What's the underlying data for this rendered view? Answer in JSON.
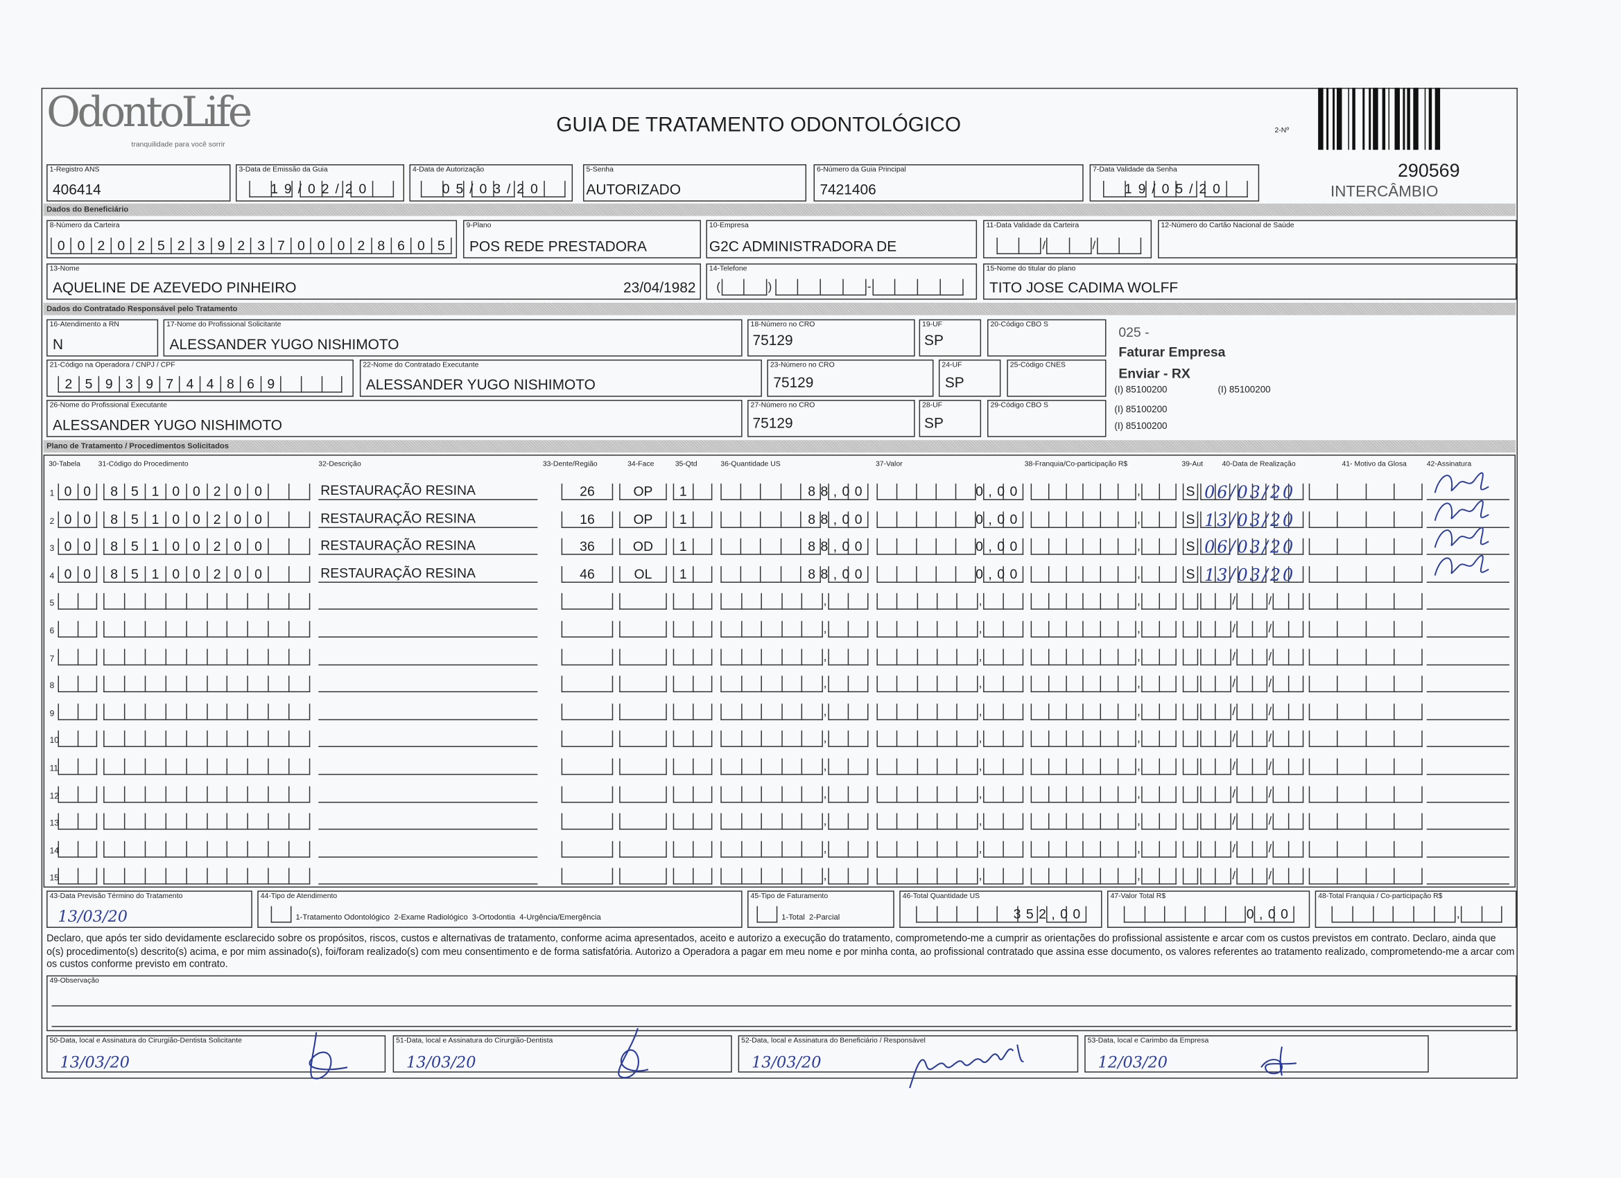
{
  "header": {
    "logo_text": "OdontoLife",
    "logo_tagline": "tranquilidade para você sorrir",
    "title": "GUIA DE TRATAMENTO ODONTOLÓGICO",
    "guide_number_label": "2-Nº",
    "guide_number": "290569",
    "type": "INTERCÂMBIO"
  },
  "fields": {
    "f1": {
      "label": "1-Registro ANS",
      "value": "406414"
    },
    "f3": {
      "label": "3-Data de Emissão da Guia",
      "value": "19/02/20"
    },
    "f4": {
      "label": "4-Data de Autorização",
      "value": "05/03/20"
    },
    "f5": {
      "label": "5-Senha",
      "value": "AUTORIZADO"
    },
    "f6": {
      "label": "6-Número da Guia Principal",
      "value": "7421406"
    },
    "f7": {
      "label": "7-Data Validade da Senha",
      "value": "19/05/20"
    },
    "f8": {
      "label": "8-Número da Carteira",
      "value": "00202523923700028605"
    },
    "f9": {
      "label": "9-Plano",
      "value": "POS REDE PRESTADORA"
    },
    "f10": {
      "label": "10-Empresa",
      "value": "G2C ADMINISTRADORA DE"
    },
    "f11": {
      "label": "11-Data Validade da Carteira",
      "value": ""
    },
    "f12": {
      "label": "12-Número do Cartão Nacional de Saúde",
      "value": ""
    },
    "f13": {
      "label": "13-Nome",
      "value": "AQUELINE DE AZEVEDO PINHEIRO",
      "birth_date": "23/04/1982"
    },
    "f14": {
      "label": "14-Telefone",
      "value": ""
    },
    "f15": {
      "label": "15-Nome do titular do plano",
      "value": "TITO JOSE CADIMA WOLFF"
    },
    "f16": {
      "label": "16-Atendimento a RN",
      "value": "N"
    },
    "f17": {
      "label": "17-Nome do Profissional Solicitante",
      "value": "ALESSANDER YUGO NISHIMOTO"
    },
    "f18": {
      "label": "18-Número no CRO",
      "value": "75129"
    },
    "f19": {
      "label": "19-UF",
      "value": "SP"
    },
    "f20": {
      "label": "20-Código CBO S",
      "value": ""
    },
    "f21": {
      "label": "21-Código na Operadora / CNPJ / CPF",
      "value": "25939744869"
    },
    "f22": {
      "label": "22-Nome do Contratado Executante",
      "value": "ALESSANDER YUGO NISHIMOTO"
    },
    "f23": {
      "label": "23-Número no CRO",
      "value": "75129"
    },
    "f24": {
      "label": "24-UF",
      "value": "SP"
    },
    "f25": {
      "label": "25-Código CNES",
      "value": ""
    },
    "f26": {
      "label": "26-Nome do Profissional Executante",
      "value": "ALESSANDER YUGO NISHIMOTO"
    },
    "f27": {
      "label": "27-Número no CRO",
      "value": "75129"
    },
    "f28": {
      "label": "28-UF",
      "value": "SP"
    },
    "f29": {
      "label": "29-Código CBO S",
      "value": ""
    }
  },
  "sections": {
    "beneficiario": "Dados do Beneficiário",
    "contratado": "Dados do Contratado Responsável pelo Tratamento",
    "plano": "Plano de Tratamento / Procedimentos Solicitados"
  },
  "side_notes": {
    "code": "025 -",
    "billing": "Faturar Empresa",
    "rx": "Enviar - RX",
    "refs": [
      "(I) 85100200",
      "(I) 85100200",
      "(I) 85100200",
      "(I) 85100200"
    ]
  },
  "table": {
    "headers": [
      "30-Tabela",
      "31-Código do Procedimento",
      "32-Descrição",
      "33-Dente/Região",
      "34-Face",
      "35-Qtd",
      "36-Quantidade US",
      "37-Valor",
      "38-Franquia/Co-participação R$",
      "39-Aut",
      "40-Data de Realização",
      "41- Motivo da Glosa",
      "42-Assinatura"
    ],
    "rows": [
      {
        "n": "1",
        "tabela": "00",
        "codigo": "85100200",
        "descricao": "RESTAURAÇÃO RESINA",
        "dente": "26",
        "face": "OP",
        "qtd": "1",
        "qtd_us": "88,00",
        "valor": "0,00",
        "franquia": "",
        "aut": "S",
        "data": "06/03/20",
        "signed": true
      },
      {
        "n": "2",
        "tabela": "00",
        "codigo": "85100200",
        "descricao": "RESTAURAÇÃO RESINA",
        "dente": "16",
        "face": "OP",
        "qtd": "1",
        "qtd_us": "88,00",
        "valor": "0,00",
        "franquia": "",
        "aut": "S",
        "data": "13/03/20",
        "signed": true
      },
      {
        "n": "3",
        "tabela": "00",
        "codigo": "85100200",
        "descricao": "RESTAURAÇÃO RESINA",
        "dente": "36",
        "face": "OD",
        "qtd": "1",
        "qtd_us": "88,00",
        "valor": "0,00",
        "franquia": "",
        "aut": "S",
        "data": "06/03/20",
        "signed": true
      },
      {
        "n": "4",
        "tabela": "00",
        "codigo": "85100200",
        "descricao": "RESTAURAÇÃO RESINA",
        "dente": "46",
        "face": "OL",
        "qtd": "1",
        "qtd_us": "88,00",
        "valor": "0,00",
        "franquia": "",
        "aut": "S",
        "data": "13/03/20",
        "signed": true
      },
      {
        "n": "5"
      },
      {
        "n": "6"
      },
      {
        "n": "7"
      },
      {
        "n": "8"
      },
      {
        "n": "9"
      },
      {
        "n": "10"
      },
      {
        "n": "11"
      },
      {
        "n": "12"
      },
      {
        "n": "13"
      },
      {
        "n": "14"
      },
      {
        "n": "15"
      }
    ]
  },
  "footer": {
    "f43": {
      "label": "43-Data Previsão Término do Tratamento",
      "value": "13/03/20"
    },
    "f44": {
      "label": "44-Tipo de Atendimento",
      "options": "1-Tratamento Odontológico  2-Exame Radiológico  3-Ortodontia  4-Urgência/Emergência"
    },
    "f45": {
      "label": "45-Tipo de Faturamento",
      "options": "1-Total  2-Parcial"
    },
    "f46": {
      "label": "46-Total Quantidade US",
      "value": "352,00"
    },
    "f47": {
      "label": "47-Valor Total R$",
      "value": "0,00"
    },
    "f48": {
      "label": "48-Total Franquia / Co-participação R$",
      "value": ""
    },
    "declaration": "Declaro, que após ter sido devidamente esclarecido sobre os propósitos, riscos, custos e alternativas de tratamento, conforme acima apresentados, aceito e autorizo a execução do tratamento, comprometendo-me a cumprir as orientações do profissional assistente e arcar com os custos previstos em contrato. Declaro, ainda que o(s) procedimento(s) descrito(s) acima, e por mim assinado(s), foi/foram realizado(s) com meu consentimento e de forma satisfatória. Autorizo a Operadora a pagar em meu nome e por minha conta, ao profissional contratado que assina esse documento, os valores referentes ao tratamento realizado, comprometendo-me a arcar com os custos conforme previsto em contrato.",
    "f49": {
      "label": "49-Observação",
      "value": ""
    },
    "f50": {
      "label": "50-Data, local e Assinatura do Cirurgião-Dentista Solicitante",
      "date": "13/03/20"
    },
    "f51": {
      "label": "51-Data, local e Assinatura do Cirurgião-Dentista",
      "date": "13/03/20"
    },
    "f52": {
      "label": "52-Data, local e Assinatura do Beneficiário / Responsável",
      "date": "13/03/20"
    },
    "f53": {
      "label": "53-Data, local e Carimbo da Empresa",
      "date": "12/03/20"
    }
  },
  "colors": {
    "ink": "#1e1e1e",
    "handwriting": "#2b3b9c",
    "section_bar": "#c8c8c8"
  }
}
